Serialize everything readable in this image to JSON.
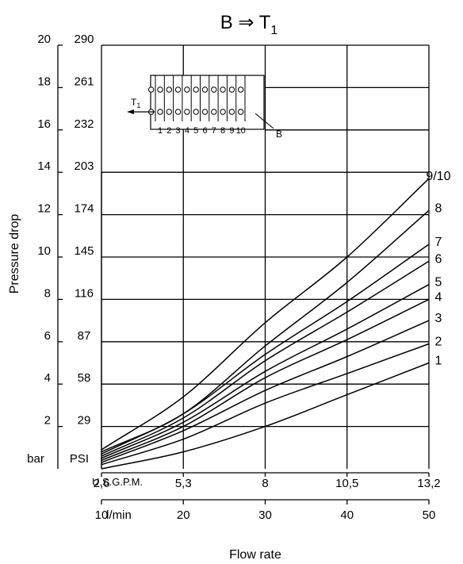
{
  "chart_data": {
    "type": "line",
    "title_main": "B ⇒ T",
    "title_sub": "1",
    "xlabel": "Flow rate",
    "ylabel": "Pressure drop",
    "x_unit_lmin": "l/min",
    "x_unit_usgpm": "U.S.G.P.M.",
    "y_unit_bar": "bar",
    "y_unit_psi": "PSI",
    "xlim": [
      0,
      50
    ],
    "ylim": [
      0,
      20
    ],
    "grid": true,
    "x_ticks_lmin": [
      "10",
      "20",
      "30",
      "40",
      "50"
    ],
    "x_ticks_usgpm": [
      "2,6",
      "5,3",
      "8",
      "10,5",
      "13,2"
    ],
    "y_ticks_bar": [
      "2",
      "4",
      "6",
      "8",
      "10",
      "12",
      "14",
      "16",
      "18",
      "20"
    ],
    "y_ticks_psi": [
      "29",
      "58",
      "87",
      "116",
      "145",
      "174",
      "203",
      "232",
      "261",
      "290"
    ],
    "x": [
      10,
      20,
      30,
      40,
      50
    ],
    "series": [
      {
        "name": "1",
        "values": [
          0.0,
          0.8,
          2.0,
          3.5,
          5.0
        ]
      },
      {
        "name": "2",
        "values": [
          0.2,
          1.4,
          3.1,
          4.5,
          5.9
        ]
      },
      {
        "name": "3",
        "values": [
          0.3,
          1.8,
          3.7,
          5.3,
          7.0
        ]
      },
      {
        "name": "4",
        "values": [
          0.4,
          2.0,
          4.3,
          6.1,
          8.0
        ]
      },
      {
        "name": "5",
        "values": [
          0.5,
          2.2,
          4.6,
          6.6,
          8.7
        ]
      },
      {
        "name": "6",
        "values": [
          0.6,
          2.4,
          5.1,
          7.4,
          9.8
        ]
      },
      {
        "name": "7",
        "values": [
          0.7,
          2.6,
          5.4,
          7.9,
          10.6
        ]
      },
      {
        "name": "8",
        "values": [
          0.8,
          2.6,
          5.8,
          8.8,
          12.2
        ]
      },
      {
        "name": "9/10",
        "values": [
          0.9,
          3.4,
          6.9,
          10.0,
          13.7
        ]
      }
    ],
    "inset": {
      "label_t1": "T",
      "label_t1_sub": "1",
      "label_b": "B",
      "ports": [
        "1",
        "2",
        "3",
        "4",
        "5",
        "6",
        "7",
        "8",
        "9",
        "10"
      ]
    }
  }
}
